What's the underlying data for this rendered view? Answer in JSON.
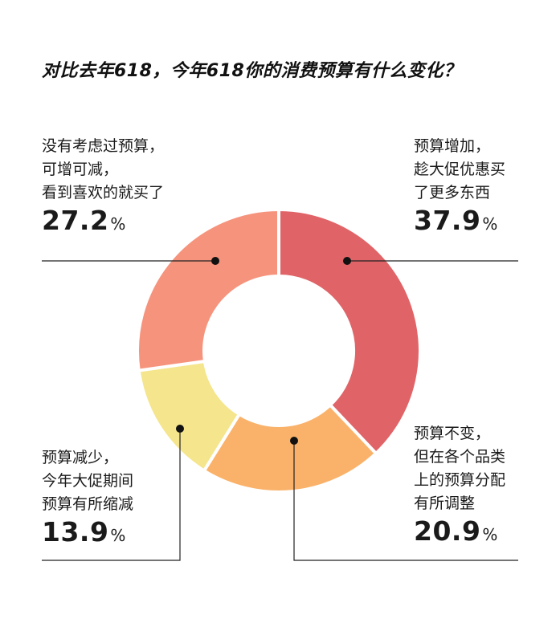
{
  "title": "对比去年618，今年618你的消费预算有什么变化？",
  "chart_data": {
    "type": "pie",
    "title": "对比去年618，今年618你的消费预算有什么变化？",
    "unit": "%",
    "slices": [
      {
        "key": "increase",
        "lines": [
          "预算增加，",
          "趁大促优惠买",
          "了更多东西"
        ],
        "value": 37.9,
        "color": "#E06467"
      },
      {
        "key": "same",
        "lines": [
          "预算不变，",
          "但在各个品类",
          "上的预算分配",
          "有所调整"
        ],
        "value": 20.9,
        "color": "#FAB26A"
      },
      {
        "key": "decrease",
        "lines": [
          "预算减少，",
          "今年大促期间",
          "预算有所缩减"
        ],
        "value": 13.9,
        "color": "#F5E58C"
      },
      {
        "key": "unplanned",
        "lines": [
          "没有考虑过预算，",
          "可增可减，",
          "看到喜欢的就买了"
        ],
        "value": 27.2,
        "color": "#F6937C"
      }
    ]
  }
}
